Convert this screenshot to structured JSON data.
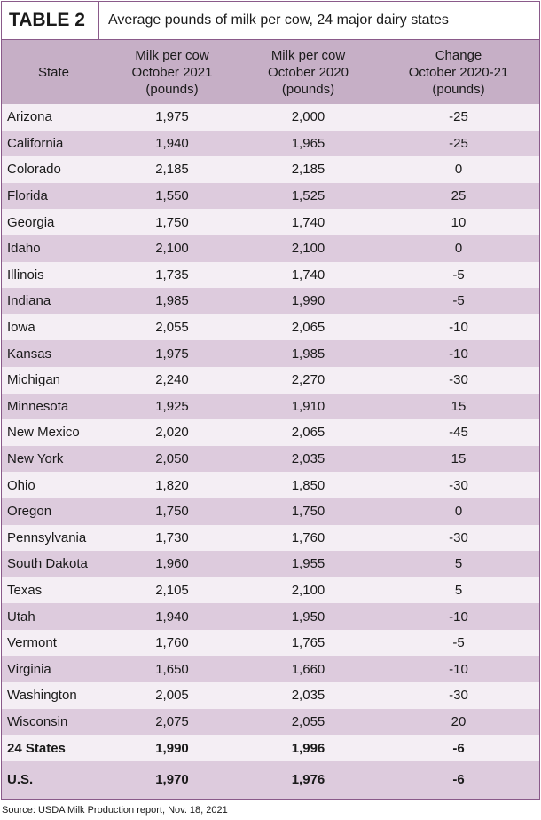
{
  "header": {
    "label": "TABLE 2",
    "title": "Average pounds of milk per cow, 24 major dairy states"
  },
  "table": {
    "columns": [
      "State",
      "Milk per cow\nOctober 2021\n(pounds)",
      "Milk per cow\nOctober 2020\n(pounds)",
      "Change\nOctober 2020-21\n(pounds)"
    ],
    "rows": [
      [
        "Arizona",
        "1,975",
        "2,000",
        "-25"
      ],
      [
        "California",
        "1,940",
        "1,965",
        "-25"
      ],
      [
        "Colorado",
        "2,185",
        "2,185",
        "0"
      ],
      [
        "Florida",
        "1,550",
        "1,525",
        "25"
      ],
      [
        "Georgia",
        "1,750",
        "1,740",
        "10"
      ],
      [
        "Idaho",
        "2,100",
        "2,100",
        "0"
      ],
      [
        "Illinois",
        "1,735",
        "1,740",
        "-5"
      ],
      [
        "Indiana",
        "1,985",
        "1,990",
        "-5"
      ],
      [
        "Iowa",
        "2,055",
        "2,065",
        "-10"
      ],
      [
        "Kansas",
        "1,975",
        "1,985",
        "-10"
      ],
      [
        "Michigan",
        "2,240",
        "2,270",
        "-30"
      ],
      [
        "Minnesota",
        "1,925",
        "1,910",
        "15"
      ],
      [
        "New Mexico",
        "2,020",
        "2,065",
        "-45"
      ],
      [
        "New York",
        "2,050",
        "2,035",
        "15"
      ],
      [
        "Ohio",
        "1,820",
        "1,850",
        "-30"
      ],
      [
        "Oregon",
        "1,750",
        "1,750",
        "0"
      ],
      [
        "Pennsylvania",
        "1,730",
        "1,760",
        "-30"
      ],
      [
        "South Dakota",
        "1,960",
        "1,955",
        "5"
      ],
      [
        "Texas",
        "2,105",
        "2,100",
        "5"
      ],
      [
        "Utah",
        "1,940",
        "1,950",
        "-10"
      ],
      [
        "Vermont",
        "1,760",
        "1,765",
        "-5"
      ],
      [
        "Virginia",
        "1,650",
        "1,660",
        "-10"
      ],
      [
        "Washington",
        "2,005",
        "2,035",
        "-30"
      ],
      [
        "Wisconsin",
        "2,075",
        "2,055",
        "20"
      ],
      [
        "24 States",
        "1,990",
        "1,996",
        "-6"
      ],
      [
        "U.S.",
        "1,970",
        "1,976",
        "-6"
      ]
    ]
  },
  "source": "Source: USDA Milk Production report, Nov. 18, 2021"
}
